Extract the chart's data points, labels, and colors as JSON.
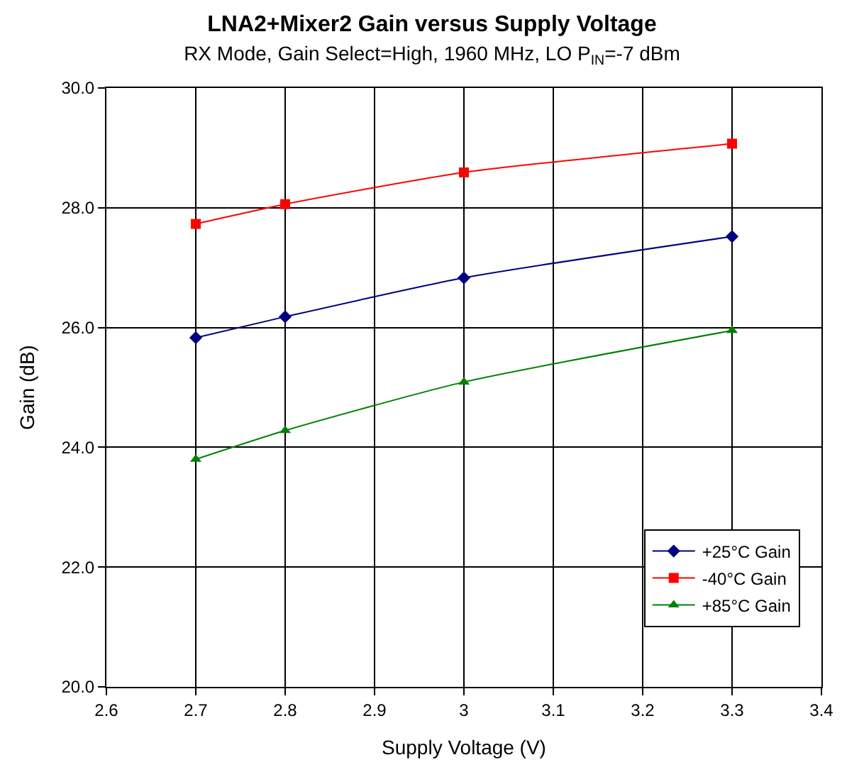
{
  "chart_data": {
    "type": "line",
    "title": "LNA2+Mixer2 Gain versus Supply Voltage",
    "subtitle": "RX Mode, Gain Select=High, 1960 MHz, LO P$_{IN}$=-7 dBm",
    "xlabel": "Supply Voltage (V)",
    "ylabel": "Gain (dB)",
    "x": [
      2.7,
      2.8,
      3.0,
      3.3
    ],
    "series": [
      {
        "name": "+25°C Gain",
        "color": "#000080",
        "marker": "diamond",
        "values": [
          25.83,
          26.18,
          26.83,
          27.52
        ]
      },
      {
        "name": "-40°C Gain",
        "color": "#ff0000",
        "marker": "square",
        "values": [
          27.73,
          28.06,
          28.59,
          29.07
        ]
      },
      {
        "name": "+85°C Gain",
        "color": "#008000",
        "marker": "triangle",
        "values": [
          23.8,
          24.28,
          25.09,
          25.95
        ]
      }
    ],
    "xlim": [
      2.6,
      3.4
    ],
    "xticks": [
      {
        "value": 2.6,
        "label": "2.6"
      },
      {
        "value": 2.7,
        "label": "2.7"
      },
      {
        "value": 2.8,
        "label": "2.8"
      },
      {
        "value": 2.9,
        "label": "2.9"
      },
      {
        "value": 3.0,
        "label": "3"
      },
      {
        "value": 3.1,
        "label": "3.1"
      },
      {
        "value": 3.2,
        "label": "3.2"
      },
      {
        "value": 3.3,
        "label": "3.3"
      },
      {
        "value": 3.4,
        "label": "3.4"
      }
    ],
    "ylim": [
      20,
      30
    ],
    "yticks": [
      {
        "value": 20,
        "label": "20.0"
      },
      {
        "value": 22,
        "label": "22.0"
      },
      {
        "value": 24,
        "label": "24.0"
      },
      {
        "value": 26,
        "label": "26.0"
      },
      {
        "value": 28,
        "label": "28.0"
      },
      {
        "value": 30,
        "label": "30.0"
      }
    ],
    "grid": true,
    "legend": "bottom right",
    "line_style": "solid"
  }
}
